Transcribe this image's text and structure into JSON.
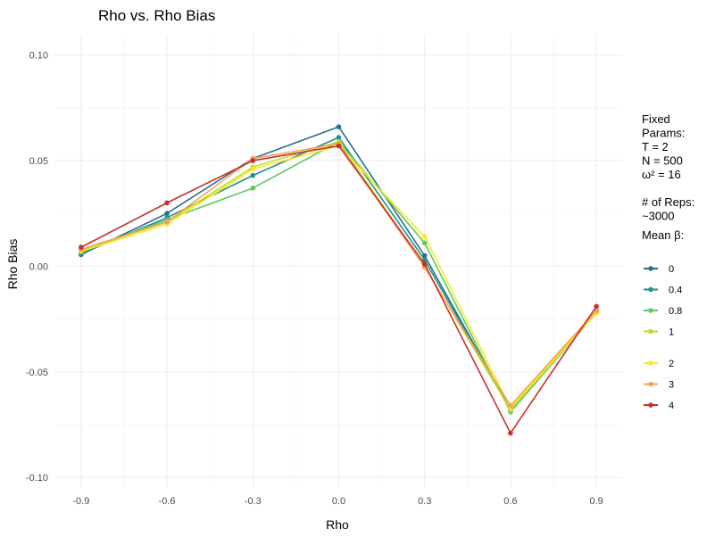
{
  "chart_data": {
    "type": "line",
    "title": "Rho vs. Rho Bias",
    "xlabel": "Rho",
    "ylabel": "Rho Bias",
    "x": [
      -0.9,
      -0.6,
      -0.3,
      0.0,
      0.3,
      0.6,
      0.9
    ],
    "x_tick_labels": [
      "-0.9",
      "-0.6",
      "-0.3",
      "0.0",
      "0.3",
      "0.6",
      "0.9"
    ],
    "xlim": [
      -0.99,
      0.99
    ],
    "ylim": [
      -0.105,
      0.11
    ],
    "y_ticks": [
      0.1,
      0.05,
      0.0,
      -0.05,
      -0.1
    ],
    "y_tick_labels": [
      "0.10",
      "0.05",
      "0.00",
      "-0.05",
      "-0.10"
    ],
    "grid": true,
    "legend_position": "right",
    "legend_notes": [
      "Fixed",
      "Params:",
      "T = 2",
      "N = 500",
      "ω² = 16",
      "",
      "# of Reps:",
      "~3000"
    ],
    "legend_title": "Mean β:",
    "series": [
      {
        "name": "0",
        "color": "#2a6f8a",
        "values": [
          0.0055,
          0.025,
          0.051,
          0.066,
          0.005,
          -0.068,
          -0.022
        ]
      },
      {
        "name": "0.4",
        "color": "#21918c",
        "values": [
          0.006,
          0.023,
          0.043,
          0.061,
          0.003,
          -0.068,
          -0.021
        ]
      },
      {
        "name": "0.8",
        "color": "#5ec962",
        "values": [
          0.007,
          0.022,
          0.037,
          0.059,
          0.011,
          -0.069,
          -0.022
        ]
      },
      {
        "name": "1",
        "color": "#bddf26",
        "values": [
          0.0075,
          0.021,
          0.047,
          0.059,
          0.0,
          -0.068,
          -0.022
        ]
      },
      {
        "name": "2",
        "color": "#fde725",
        "values": [
          0.007,
          0.02,
          0.046,
          0.057,
          0.014,
          -0.067,
          -0.022
        ]
      },
      {
        "name": "3",
        "color": "#f4a259",
        "values": [
          0.008,
          0.021,
          0.051,
          0.058,
          -0.0005,
          -0.066,
          -0.021
        ]
      },
      {
        "name": "4",
        "color": "#c7302b",
        "values": [
          0.009,
          0.03,
          0.05,
          0.057,
          0.001,
          -0.079,
          -0.019
        ]
      }
    ]
  }
}
